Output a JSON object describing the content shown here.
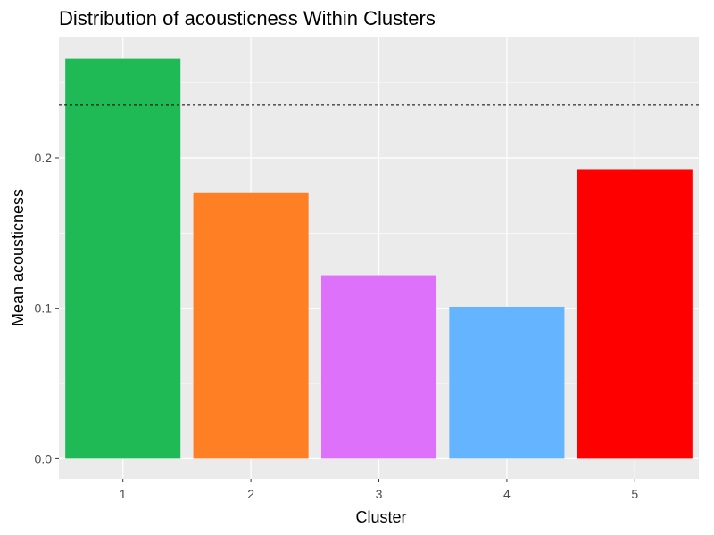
{
  "chart_data": {
    "type": "bar",
    "title": "Distribution of acousticness Within Clusters",
    "xlabel": "Cluster",
    "ylabel": "Mean acousticness",
    "categories": [
      "1",
      "2",
      "3",
      "4",
      "5"
    ],
    "values": [
      0.266,
      0.177,
      0.122,
      0.101,
      0.192
    ],
    "bar_colors": [
      "#1FBA55",
      "#FF7F24",
      "#DD71FA",
      "#64B4FF",
      "#FF0000"
    ],
    "reference_line": {
      "value": 0.235,
      "style": "dashed",
      "color": "#000000"
    },
    "yticks": [
      0.0,
      0.1,
      0.2
    ],
    "ytick_labels": [
      "0.0",
      "0.1",
      "0.2"
    ],
    "ylim": [
      -0.0134,
      0.28
    ],
    "grid": true,
    "legend": "none",
    "panel_background": "#EBEBEB",
    "grid_color": "#FFFFFF"
  }
}
